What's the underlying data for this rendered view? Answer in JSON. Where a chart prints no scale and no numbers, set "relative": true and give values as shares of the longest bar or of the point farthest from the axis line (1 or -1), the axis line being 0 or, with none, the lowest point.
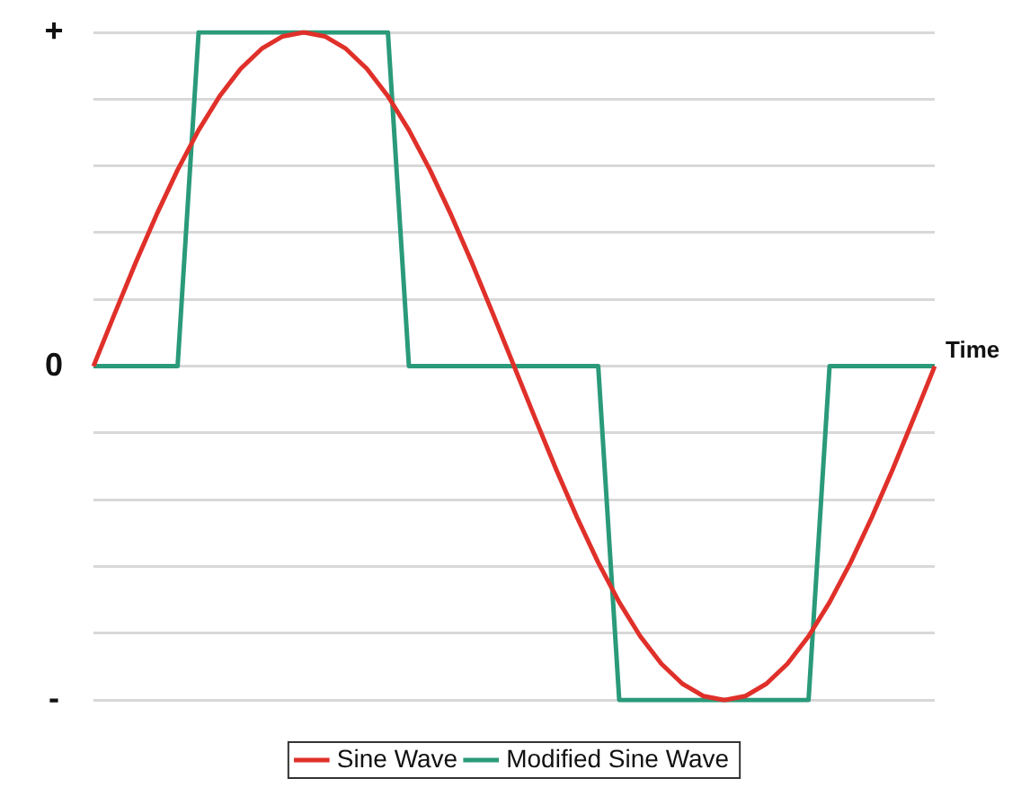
{
  "chart_data": {
    "type": "line",
    "xlabel": "Time",
    "categories": [
      null,
      null,
      null,
      null,
      null,
      null,
      null,
      null,
      null,
      null,
      null,
      null,
      null,
      null,
      null,
      null,
      null,
      null,
      null,
      null,
      null,
      null,
      null,
      null,
      null,
      null,
      null,
      null,
      null,
      null,
      null,
      null,
      null,
      null,
      null,
      null,
      null,
      null,
      null,
      null,
      null
    ],
    "series": [
      {
        "name": "Sine Wave",
        "color": "#e0302a",
        "values": [
          0,
          0.156,
          0.309,
          0.454,
          0.588,
          0.707,
          0.809,
          0.891,
          0.951,
          0.988,
          1,
          0.988,
          0.951,
          0.891,
          0.809,
          0.707,
          0.588,
          0.454,
          0.309,
          0.156,
          0,
          -0.156,
          -0.309,
          -0.454,
          -0.588,
          -0.707,
          -0.809,
          -0.891,
          -0.951,
          -0.988,
          -1,
          -0.988,
          -0.951,
          -0.891,
          -0.809,
          -0.707,
          -0.588,
          -0.454,
          -0.309,
          -0.156,
          0
        ]
      },
      {
        "name": "Modified Sine Wave",
        "color": "#2a9a7a",
        "values": [
          0,
          0,
          0,
          0,
          0,
          1,
          1,
          1,
          1,
          1,
          1,
          1,
          1,
          1,
          1,
          0,
          0,
          0,
          0,
          0,
          0,
          0,
          0,
          0,
          0,
          -1,
          -1,
          -1,
          -1,
          -1,
          -1,
          -1,
          -1,
          -1,
          -1,
          0,
          0,
          0,
          0,
          0,
          0
        ]
      }
    ],
    "relative": true,
    "annotations": [
      "+",
      "0",
      "-"
    ],
    "grid": "y",
    "legend": "bottom",
    "marker": "none",
    "line_style": "solid"
  }
}
